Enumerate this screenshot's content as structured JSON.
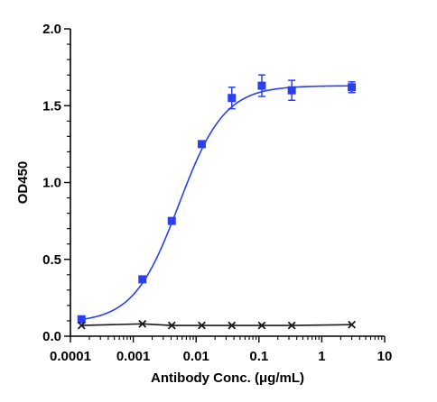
{
  "chart_data": {
    "type": "scatter",
    "title": "",
    "xlabel": "Antibody Conc. (μg/mL)",
    "ylabel": "OD450",
    "x_scale": "log",
    "xlim": [
      0.0001,
      10
    ],
    "ylim": [
      0,
      2.0
    ],
    "x_ticks": [
      "0.0001",
      "0.001",
      "0.01",
      "0.1",
      "1",
      "10"
    ],
    "y_ticks": [
      "0.0",
      "0.5",
      "1.0",
      "1.5",
      "2.0"
    ],
    "grid": false,
    "legend": "none",
    "series": [
      {
        "marker": "square",
        "color": "#2b3ff0",
        "fit_curve": true,
        "points": [
          {
            "x": 0.00015,
            "y": 0.11,
            "err": 0.02
          },
          {
            "x": 0.0014,
            "y": 0.37,
            "err": 0.015
          },
          {
            "x": 0.0041,
            "y": 0.75,
            "err": 0.015
          },
          {
            "x": 0.0123,
            "y": 1.25,
            "err": 0.015
          },
          {
            "x": 0.037,
            "y": 1.55,
            "err": 0.07
          },
          {
            "x": 0.111,
            "y": 1.63,
            "err": 0.07
          },
          {
            "x": 0.333,
            "y": 1.6,
            "err": 0.065
          },
          {
            "x": 3.0,
            "y": 1.62,
            "err": 0.035
          }
        ]
      },
      {
        "marker": "x",
        "color": "#1a1a1a",
        "fit_curve": true,
        "points": [
          {
            "x": 0.00015,
            "y": 0.07
          },
          {
            "x": 0.0014,
            "y": 0.08
          },
          {
            "x": 0.0041,
            "y": 0.07
          },
          {
            "x": 0.0123,
            "y": 0.07
          },
          {
            "x": 0.037,
            "y": 0.07
          },
          {
            "x": 0.111,
            "y": 0.07
          },
          {
            "x": 0.333,
            "y": 0.07
          },
          {
            "x": 3.0,
            "y": 0.075
          }
        ]
      }
    ]
  }
}
